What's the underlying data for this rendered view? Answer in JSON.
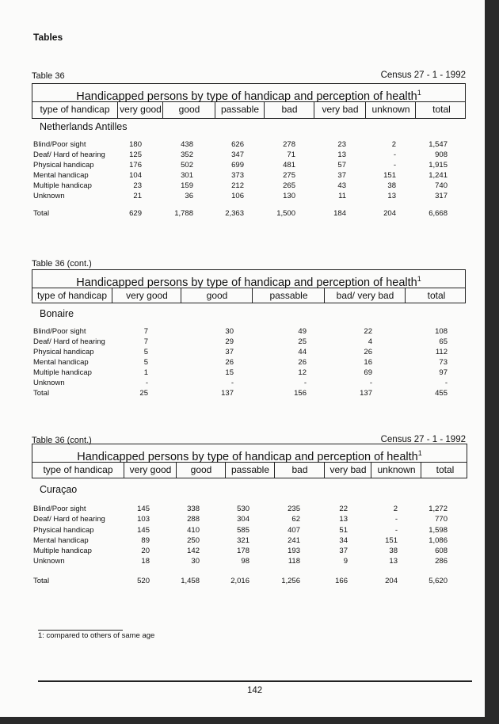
{
  "page_header": "Tables",
  "page_number": "142",
  "footnote": "1: compared to others of same age",
  "tables": [
    {
      "label": "Table 36",
      "census": "Census 27 - 1 - 1992",
      "title": "Handicapped persons by type of handicap and perception of health",
      "footnote_mark": "1",
      "columns": [
        "type of handicap",
        "very good",
        "good",
        "passable",
        "bad",
        "very bad",
        "unknown",
        "total"
      ],
      "section": "Netherlands Antilles",
      "rows": [
        {
          "label": "Blind/Poor sight",
          "values": [
            "180",
            "438",
            "626",
            "278",
            "23",
            "2",
            "1,547"
          ]
        },
        {
          "label": "Deaf/ Hard of hearing",
          "values": [
            "125",
            "352",
            "347",
            "71",
            "13",
            "-",
            "908"
          ]
        },
        {
          "label": "Physical handicap",
          "values": [
            "176",
            "502",
            "699",
            "481",
            "57",
            "-",
            "1,915"
          ]
        },
        {
          "label": "Mental handicap",
          "values": [
            "104",
            "301",
            "373",
            "275",
            "37",
            "151",
            "1,241"
          ]
        },
        {
          "label": "Multiple handicap",
          "values": [
            "23",
            "159",
            "212",
            "265",
            "43",
            "38",
            "740"
          ]
        },
        {
          "label": "Unknown",
          "values": [
            "21",
            "36",
            "106",
            "130",
            "11",
            "13",
            "317"
          ]
        }
      ],
      "total": {
        "label": "Total",
        "values": [
          "629",
          "1,788",
          "2,363",
          "1,500",
          "184",
          "204",
          "6,668"
        ]
      }
    },
    {
      "label": "Table 36 (cont.)",
      "census": "",
      "title": "Handicapped persons by type of handicap and perception of health",
      "footnote_mark": "1",
      "columns": [
        "type of handicap",
        "very good",
        "good",
        "passable",
        "bad/ very bad",
        "total"
      ],
      "section": "Bonaire",
      "rows": [
        {
          "label": "Blind/Poor sight",
          "values": [
            "7",
            "30",
            "49",
            "22",
            "108"
          ]
        },
        {
          "label": "Deaf/ Hard of hearing",
          "values": [
            "7",
            "29",
            "25",
            "4",
            "65"
          ]
        },
        {
          "label": "Physical handicap",
          "values": [
            "5",
            "37",
            "44",
            "26",
            "112"
          ]
        },
        {
          "label": "Mental handicap",
          "values": [
            "5",
            "26",
            "26",
            "16",
            "73"
          ]
        },
        {
          "label": "Multiple handicap",
          "values": [
            "1",
            "15",
            "12",
            "69",
            "97"
          ]
        },
        {
          "label": "Unknown",
          "values": [
            "-",
            "-",
            "-",
            "-",
            "-"
          ]
        }
      ],
      "total": {
        "label": "Total",
        "values": [
          "25",
          "137",
          "156",
          "137",
          "455"
        ]
      }
    },
    {
      "label": "Table 36 (cont.)",
      "census": "Census 27 - 1 - 1992",
      "title": "Handicapped persons by type of handicap and perception of health",
      "footnote_mark": "1",
      "columns": [
        "type of handicap",
        "very good",
        "good",
        "passable",
        "bad",
        "very bad",
        "unknown",
        "total"
      ],
      "section": "Curaçao",
      "rows": [
        {
          "label": "Blind/Poor sight",
          "values": [
            "145",
            "338",
            "530",
            "235",
            "22",
            "2",
            "1,272"
          ]
        },
        {
          "label": "Deaf/ Hard of hearing",
          "values": [
            "103",
            "288",
            "304",
            "62",
            "13",
            "-",
            "770"
          ]
        },
        {
          "label": "Physical handicap",
          "values": [
            "145",
            "410",
            "585",
            "407",
            "51",
            "-",
            "1,598"
          ]
        },
        {
          "label": "Mental handicap",
          "values": [
            "89",
            "250",
            "321",
            "241",
            "34",
            "151",
            "1,086"
          ]
        },
        {
          "label": "Multiple handicap",
          "values": [
            "20",
            "142",
            "178",
            "193",
            "37",
            "38",
            "608"
          ]
        },
        {
          "label": "Unknown",
          "values": [
            "18",
            "30",
            "98",
            "118",
            "9",
            "13",
            "286"
          ]
        }
      ],
      "total": {
        "label": "Total",
        "values": [
          "520",
          "1,458",
          "2,016",
          "1,256",
          "166",
          "204",
          "5,620"
        ]
      }
    }
  ]
}
